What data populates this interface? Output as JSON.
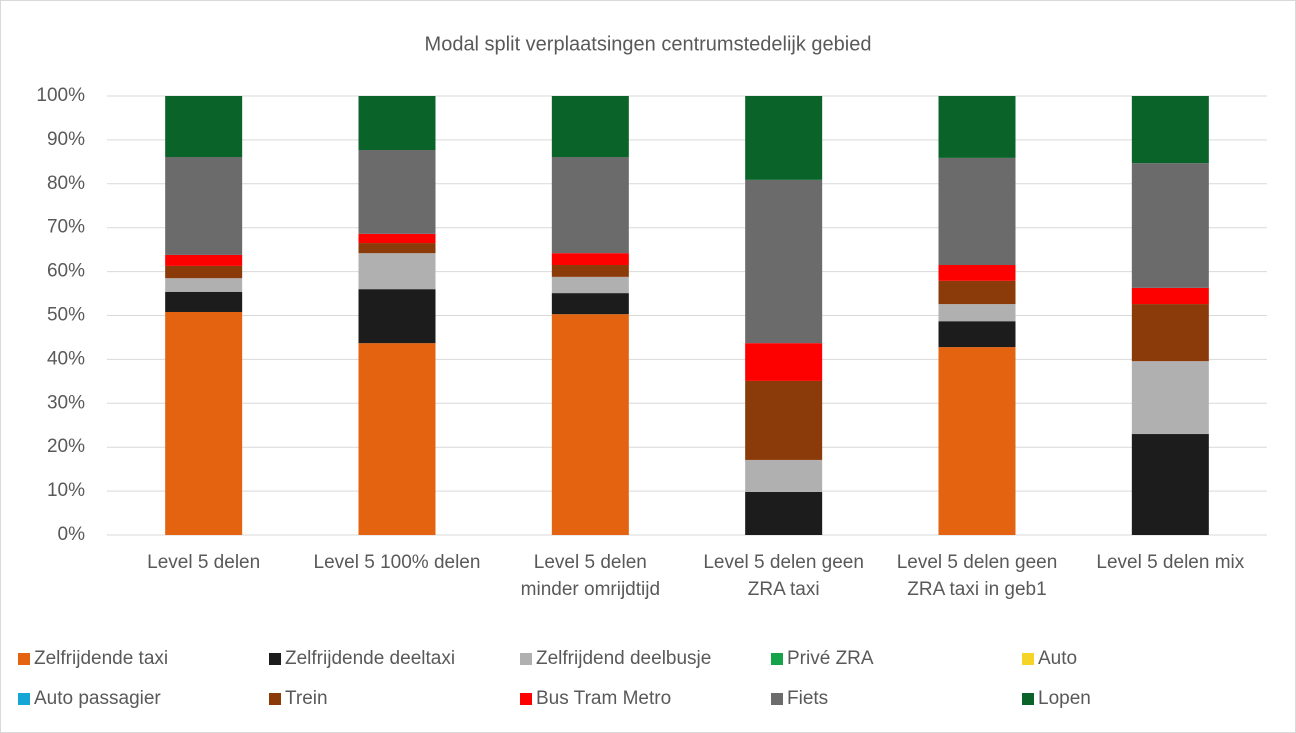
{
  "chart_data": {
    "type": "stacked_bar",
    "title": "Modal split verplaatsingen centrumstedelijk gebied",
    "categories": [
      "Level 5 delen",
      "Level 5 100% delen",
      "Level 5 delen minder omrijdtijd",
      "Level 5 delen geen ZRA taxi",
      "Level 5 delen geen ZRA taxi in geb1",
      "Level 5 delen mix"
    ],
    "series": [
      {
        "name": "Zelfrijdende taxi",
        "color": "#e36311",
        "values": [
          50.8,
          43.7,
          50.3,
          0,
          42.8,
          0
        ]
      },
      {
        "name": "Zelfrijdende deeltaxi",
        "color": "#1c1c1c",
        "values": [
          4.6,
          12.3,
          4.8,
          9.8,
          5.9,
          23.0
        ]
      },
      {
        "name": "Zelfrijdend deelbusje",
        "color": "#b0b0b0",
        "values": [
          3.1,
          8.2,
          3.7,
          7.3,
          3.9,
          16.6
        ]
      },
      {
        "name": "Privé ZRA",
        "color": "#16a34a",
        "values": [
          0,
          0,
          0,
          0,
          0,
          0
        ]
      },
      {
        "name": "Auto",
        "color": "#f5d327",
        "values": [
          0,
          0,
          0,
          0,
          0,
          0
        ]
      },
      {
        "name": "Auto passagier",
        "color": "#15a6d6",
        "values": [
          0,
          0,
          0,
          0,
          0,
          0
        ]
      },
      {
        "name": "Trein",
        "color": "#8b3a0a",
        "values": [
          2.8,
          2.3,
          2.7,
          18.0,
          5.3,
          13.0
        ]
      },
      {
        "name": "Bus Tram Metro",
        "color": "#fd0000",
        "values": [
          2.5,
          2.1,
          2.7,
          8.6,
          3.6,
          3.7
        ]
      },
      {
        "name": "Fiets",
        "color": "#6b6b6b",
        "values": [
          22.3,
          19.1,
          21.9,
          37.2,
          24.4,
          28.4
        ]
      },
      {
        "name": "Lopen",
        "color": "#0a6429",
        "values": [
          13.9,
          12.3,
          13.9,
          19.1,
          14.1,
          15.3
        ]
      }
    ],
    "ylim": [
      0,
      100
    ],
    "yticks": [
      {
        "value": 0,
        "label": "0%"
      },
      {
        "value": 10,
        "label": "10%"
      },
      {
        "value": 20,
        "label": "20%"
      },
      {
        "value": 30,
        "label": "30%"
      },
      {
        "value": 40,
        "label": "40%"
      },
      {
        "value": 50,
        "label": "50%"
      },
      {
        "value": 60,
        "label": "60%"
      },
      {
        "value": 70,
        "label": "70%"
      },
      {
        "value": 80,
        "label": "80%"
      },
      {
        "value": 90,
        "label": "90%"
      },
      {
        "value": 100,
        "label": "100%"
      }
    ],
    "grid": true
  }
}
